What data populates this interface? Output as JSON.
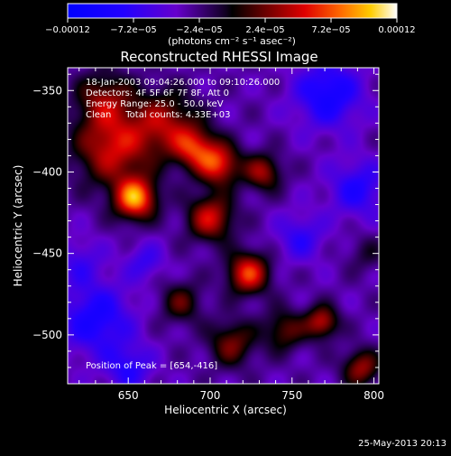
{
  "colorbar": {
    "tick_labels": [
      "-0.00012",
      "-7.2e-05",
      "-2.4e-05",
      "2.4e-05",
      "7.2e-05",
      "0.00012"
    ],
    "units_label": "(photons cm⁻² s⁻¹ asec⁻²)",
    "range": [
      -0.00012,
      0.00012
    ]
  },
  "chart_data": {
    "type": "heatmap",
    "title": "Reconstructed RHESSI Image",
    "xlabel": "Heliocentric X (arcsec)",
    "ylabel": "Heliocentric Y (arcsec)",
    "xlim": [
      613,
      803
    ],
    "ylim": [
      -530,
      -336
    ],
    "x_ticks": [
      "650",
      "700",
      "750",
      "800"
    ],
    "y_ticks": [
      "-350",
      "-400",
      "-450",
      "-500"
    ],
    "annotations": [
      "18-Jan-2003 09:04:26.000 to 09:10:26.000",
      "Detectors: 4F 5F 6F 7F 8F, Att 0",
      "Energy Range: 25.0 - 50.0 keV",
      "Clean     Total counts: 4.33E+03"
    ],
    "peak_label": "Position of Peak = [654,-416]",
    "peak": [
      654,
      -416
    ],
    "z_range": [
      -0.00012,
      0.00012
    ],
    "sources": [
      {
        "x": 654,
        "y": -416,
        "amp": 1.25,
        "sigma": 9
      },
      {
        "x": 640,
        "y": -385,
        "amp": 0.85,
        "sigma": 16
      },
      {
        "x": 672,
        "y": -370,
        "amp": 0.7,
        "sigma": 14
      },
      {
        "x": 690,
        "y": -385,
        "amp": 0.8,
        "sigma": 9
      },
      {
        "x": 705,
        "y": -395,
        "amp": 0.95,
        "sigma": 9
      },
      {
        "x": 732,
        "y": -400,
        "amp": 0.7,
        "sigma": 8
      },
      {
        "x": 700,
        "y": -428,
        "amp": 0.85,
        "sigma": 10
      },
      {
        "x": 723,
        "y": -462,
        "amp": 1.0,
        "sigma": 9
      },
      {
        "x": 713,
        "y": -505,
        "amp": 0.6,
        "sigma": 10
      },
      {
        "x": 745,
        "y": -497,
        "amp": 0.55,
        "sigma": 9
      },
      {
        "x": 768,
        "y": -492,
        "amp": 0.8,
        "sigma": 7
      },
      {
        "x": 792,
        "y": -520,
        "amp": 0.7,
        "sigma": 8
      },
      {
        "x": 682,
        "y": -480,
        "amp": 0.5,
        "sigma": 9
      },
      {
        "x": 635,
        "y": -355,
        "amp": 0.6,
        "sigma": 12
      },
      {
        "x": 795,
        "y": -450,
        "amp": 0.25,
        "sigma": 8
      },
      {
        "x": 772,
        "y": -352,
        "amp": -0.65,
        "sigma": 14
      },
      {
        "x": 790,
        "y": -410,
        "amp": -0.5,
        "sigma": 12
      },
      {
        "x": 630,
        "y": -490,
        "amp": -0.6,
        "sigma": 15
      },
      {
        "x": 650,
        "y": -520,
        "amp": -0.45,
        "sigma": 10
      },
      {
        "x": 660,
        "y": -455,
        "amp": -0.35,
        "sigma": 8
      },
      {
        "x": 755,
        "y": -440,
        "amp": -0.4,
        "sigma": 10
      },
      {
        "x": 620,
        "y": -455,
        "amp": -0.3,
        "sigma": 10
      }
    ]
  },
  "footer": {
    "timestamp": "25-May-2013 20:13"
  }
}
